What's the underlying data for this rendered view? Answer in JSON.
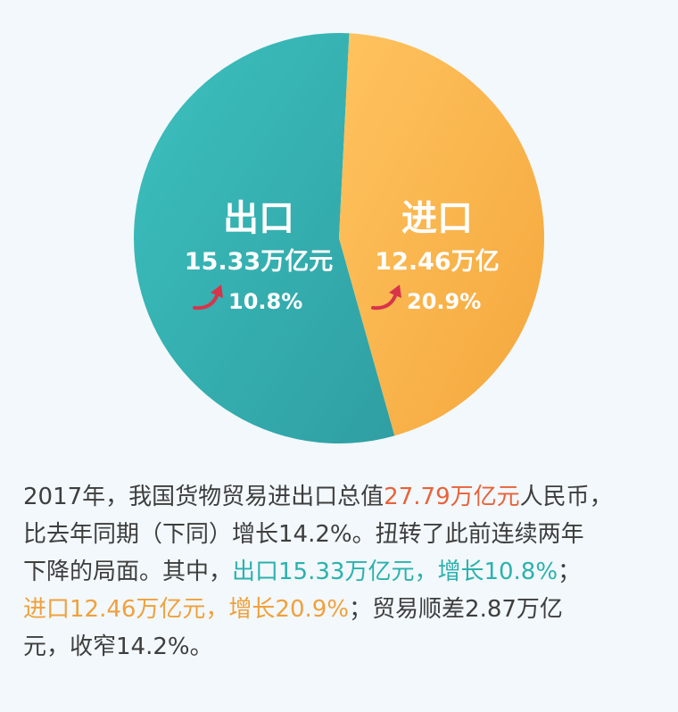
{
  "colors": {
    "export": "#35b1b1",
    "import": "#fbba52",
    "highlight_total": "#e8623a",
    "highlight_export": "#2cb1ae",
    "highlight_import": "#f0a03c",
    "arrow": "#d8344a",
    "text": "#3e3e3e"
  },
  "chart_data": {
    "type": "pie",
    "slices": [
      {
        "label": "出口",
        "value": 15.33,
        "value_text": "15.33万亿元",
        "growth_text": "10.8%",
        "growth_icon": "up-arrow-icon"
      },
      {
        "label": "进口",
        "value": 12.46,
        "value_text": "12.46万亿",
        "growth_text": "20.9%",
        "growth_icon": "up-arrow-icon"
      }
    ]
  },
  "caption": {
    "line1_a": "2017年，我国货物贸易进出口总值",
    "line1_total": "27.79万亿元",
    "line1_b": "人民币，",
    "line2": "比去年同期（下同）增长14.2%。扭转了此前连续两年",
    "line3_a": "下降的局面。其中，",
    "line3_export": "出口15.33万亿元，增长10.8%",
    "line3_b": "；",
    "line4_import": "进口12.46万亿元，增长20.9%",
    "line4_b": "；贸易顺差2.87万亿",
    "line5": "元，收窄14.2%。"
  }
}
